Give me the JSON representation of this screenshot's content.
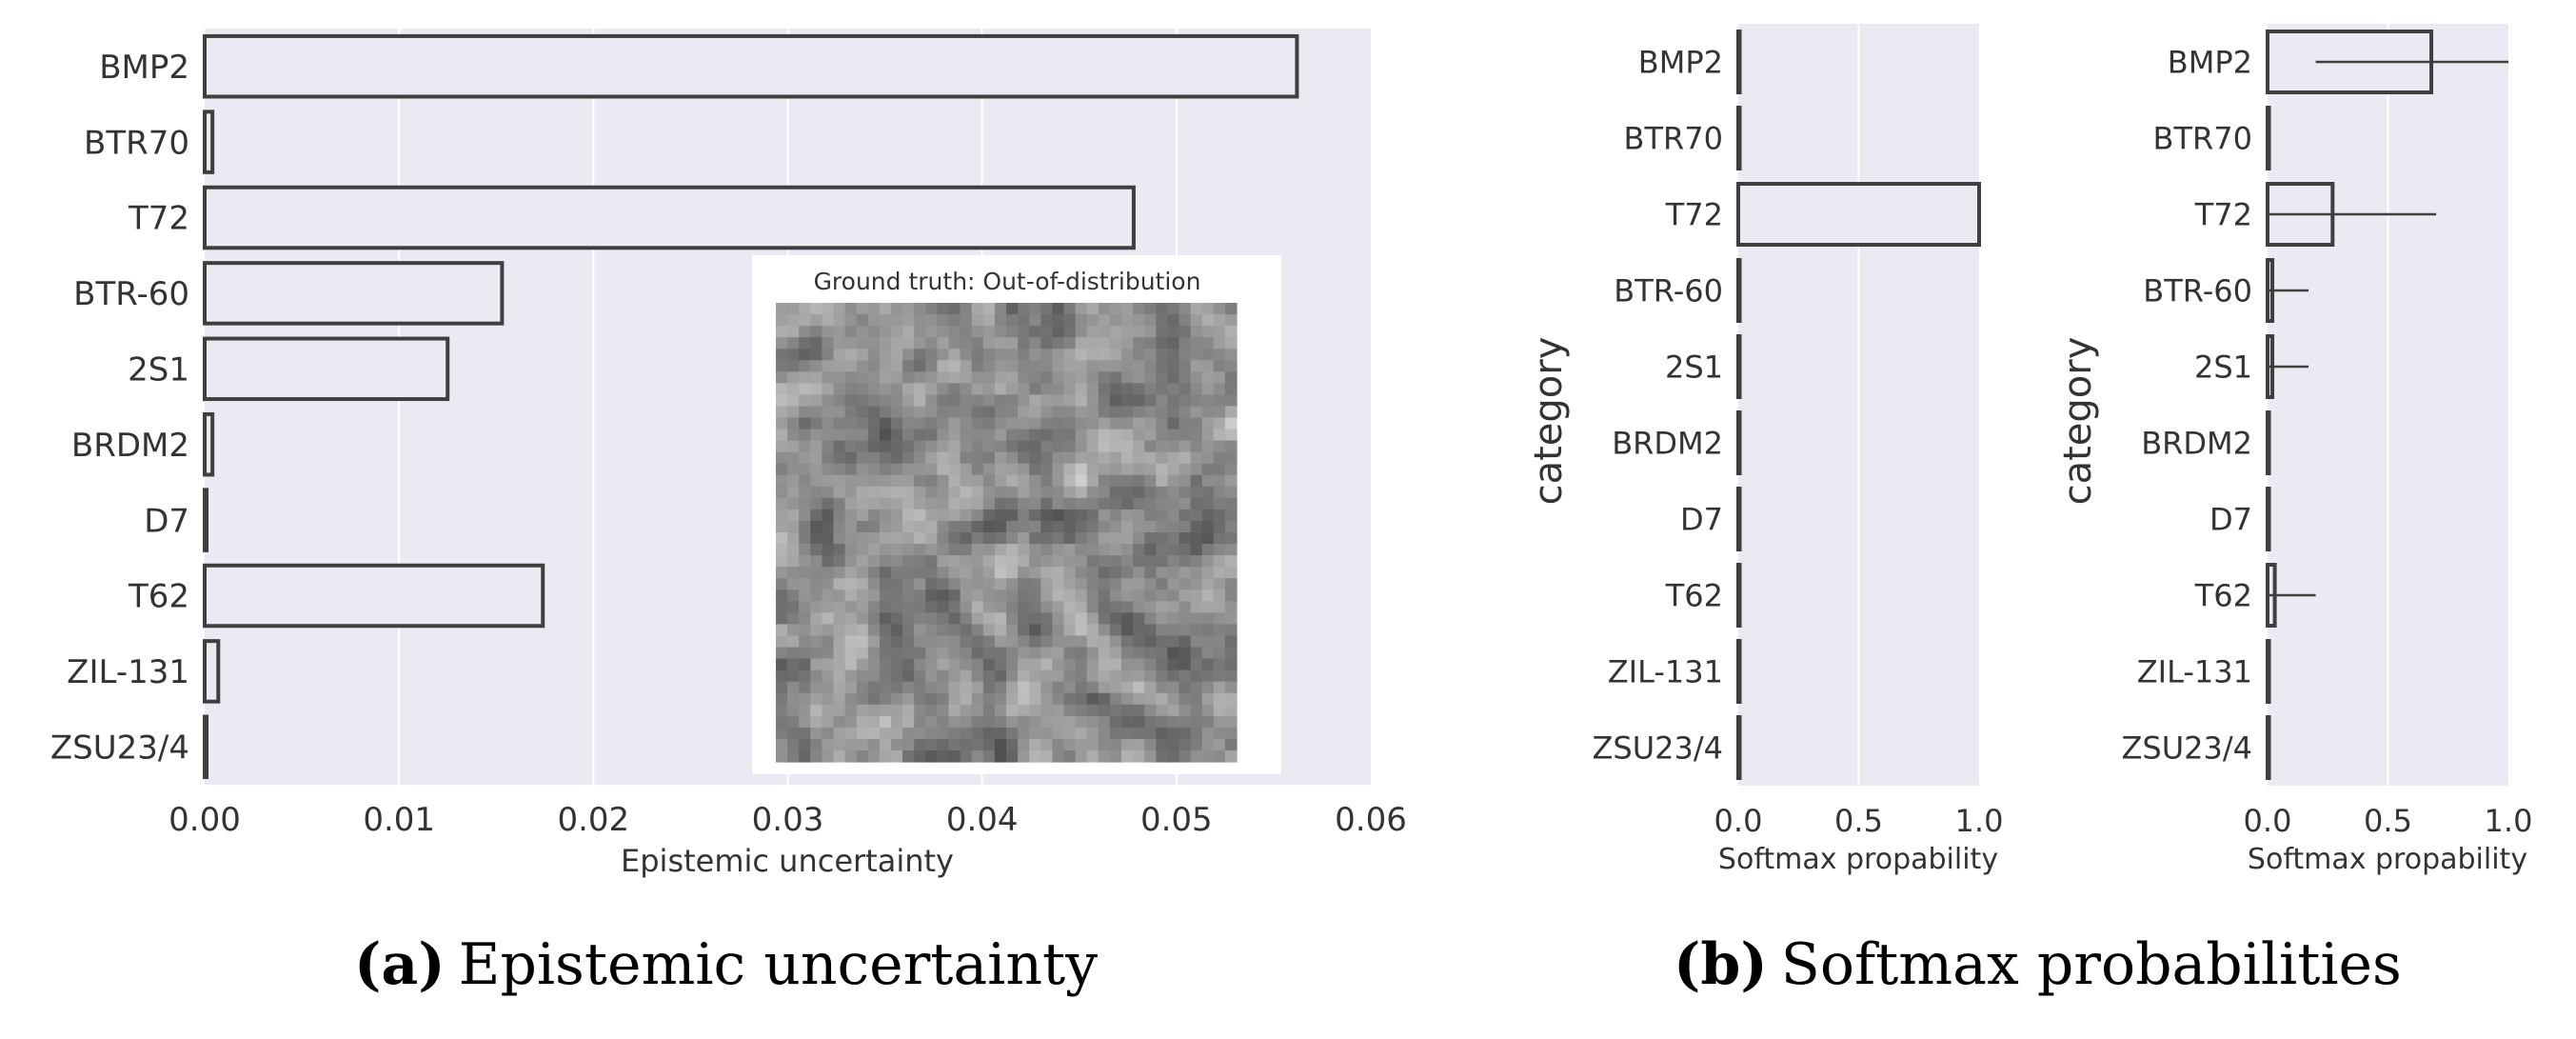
{
  "chart_data": [
    {
      "type": "bar",
      "orientation": "horizontal",
      "categories": [
        "BMP2",
        "BTR70",
        "T72",
        "BTR-60",
        "2S1",
        "BRDM2",
        "D7",
        "T62",
        "ZIL-131",
        "ZSU23/4"
      ],
      "values": [
        0.0562,
        0.0004,
        0.0478,
        0.0153,
        0.0125,
        0.0004,
        0.0001,
        0.0174,
        0.0007,
        0.0001
      ],
      "xlabel": "Epistemic uncertainty",
      "ylabel": "",
      "xlim": [
        0,
        0.06
      ],
      "xticks": [
        "0.00",
        "0.01",
        "0.02",
        "0.03",
        "0.04",
        "0.05",
        "0.06"
      ],
      "grid": true,
      "inset_title": "Ground truth: Out-of-distribution"
    },
    {
      "type": "bar",
      "orientation": "horizontal",
      "categories": [
        "BMP2",
        "BTR70",
        "T72",
        "BTR-60",
        "2S1",
        "BRDM2",
        "D7",
        "T62",
        "ZIL-131",
        "ZSU23/4"
      ],
      "values": [
        0,
        0,
        1.0,
        0,
        0,
        0,
        0,
        0,
        0,
        0
      ],
      "xlabel": "Softmax propability",
      "ylabel": "category",
      "xlim": [
        0,
        1.0
      ],
      "xticks": [
        "0.0",
        "0.5",
        "1.0"
      ],
      "grid": true
    },
    {
      "type": "bar",
      "orientation": "horizontal",
      "categories": [
        "BMP2",
        "BTR70",
        "T72",
        "BTR-60",
        "2S1",
        "BRDM2",
        "D7",
        "T62",
        "ZIL-131",
        "ZSU23/4"
      ],
      "values": [
        0.68,
        0,
        0.27,
        0.02,
        0.02,
        0,
        0,
        0.03,
        0,
        0
      ],
      "error_low": [
        0.2,
        0,
        0,
        0,
        0,
        0,
        0,
        0,
        0,
        0
      ],
      "error_high": [
        1.0,
        0,
        0.7,
        0.17,
        0.17,
        0,
        0,
        0.2,
        0,
        0
      ],
      "xlabel": "Softmax propability",
      "ylabel": "category",
      "xlim": [
        0,
        1.0
      ],
      "xticks": [
        "0.0",
        "0.5",
        "1.0"
      ],
      "grid": true
    }
  ],
  "captions": {
    "a_letter": "(a)",
    "a_text": "Epistemic uncertainty",
    "b_letter": "(b)",
    "b_text": "Softmax probabilities"
  },
  "colors": {
    "panel_bg": "#eaeaf2",
    "grid": "#ffffff",
    "bar_edge": "#3f3f3f",
    "bar_fill": "#eaeaf2",
    "text": "#333333"
  }
}
